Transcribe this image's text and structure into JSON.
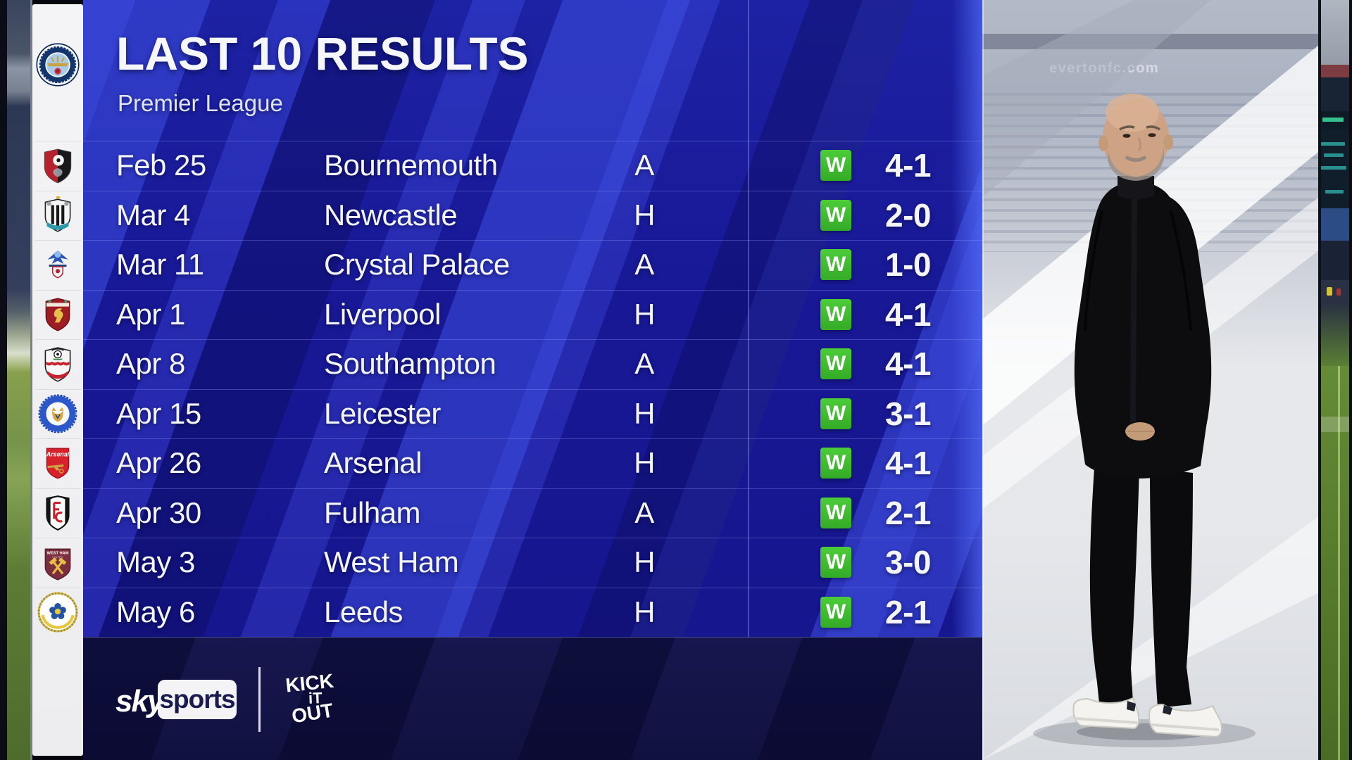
{
  "header": {
    "title": "LAST 10 RESULTS",
    "subtitle": "Premier League"
  },
  "team": {
    "name": "Manchester City",
    "badge_key": "man-city"
  },
  "results": {
    "columns": [
      "date",
      "opponent",
      "venue",
      "result",
      "score"
    ],
    "rows": [
      {
        "date": "Feb 25",
        "opponent": "Bournemouth",
        "venue": "A",
        "result": "W",
        "score": "4-1",
        "badge_key": "bournemouth"
      },
      {
        "date": "Mar 4",
        "opponent": "Newcastle",
        "venue": "H",
        "result": "W",
        "score": "2-0",
        "badge_key": "newcastle"
      },
      {
        "date": "Mar 11",
        "opponent": "Crystal Palace",
        "venue": "A",
        "result": "W",
        "score": "1-0",
        "badge_key": "crystal-palace"
      },
      {
        "date": "Apr 1",
        "opponent": "Liverpool",
        "venue": "H",
        "result": "W",
        "score": "4-1",
        "badge_key": "liverpool"
      },
      {
        "date": "Apr 8",
        "opponent": "Southampton",
        "venue": "A",
        "result": "W",
        "score": "4-1",
        "badge_key": "southampton"
      },
      {
        "date": "Apr 15",
        "opponent": "Leicester",
        "venue": "H",
        "result": "W",
        "score": "3-1",
        "badge_key": "leicester"
      },
      {
        "date": "Apr 26",
        "opponent": "Arsenal",
        "venue": "H",
        "result": "W",
        "score": "4-1",
        "badge_key": "arsenal"
      },
      {
        "date": "Apr 30",
        "opponent": "Fulham",
        "venue": "A",
        "result": "W",
        "score": "2-1",
        "badge_key": "fulham"
      },
      {
        "date": "May 3",
        "opponent": "West Ham",
        "venue": "H",
        "result": "W",
        "score": "3-0",
        "badge_key": "west-ham"
      },
      {
        "date": "May 6",
        "opponent": "Leeds",
        "venue": "H",
        "result": "W",
        "score": "2-1",
        "badge_key": "leeds"
      }
    ]
  },
  "footer": {
    "sky_word": "sky",
    "sports_word": "sports",
    "partner_lines": [
      "KICK",
      "iT",
      "OUT"
    ]
  },
  "photo": {
    "watermark": "evertonfc.com"
  },
  "colors": {
    "panel_blue": "#1b1ba2",
    "stripe_blue": "#4052e6",
    "footer_navy": "#14144a",
    "win_green": "#3fc22f",
    "strip_white": "#f1f1f4"
  }
}
